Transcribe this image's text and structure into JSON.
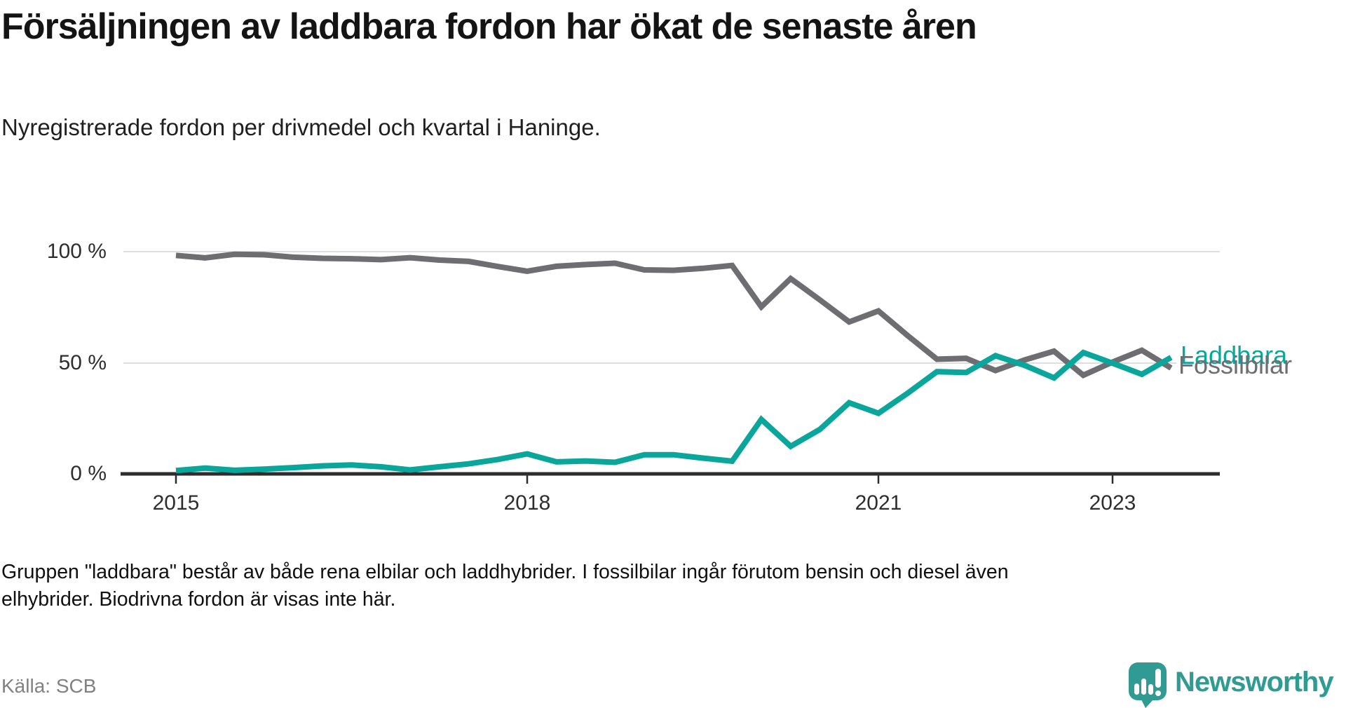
{
  "title": "Försäljningen av laddbara fordon har ökat de senaste åren",
  "subtitle": "Nyregistrerade fordon per drivmedel och kvartal i Haninge.",
  "footnote_lines": [
    "Gruppen \"laddbara\" består av både rena elbilar och laddhybrider. I fossilbilar ingår förutom bensin och diesel även",
    "elhybrider. Biodrivna fordon är visas inte här."
  ],
  "source": "Källa: SCB",
  "brand": {
    "name": "Newsworthy",
    "color": "#2f9b92"
  },
  "colors": {
    "laddbara": "#0aa69b",
    "fossilbilar": "#6d6d72",
    "gridline": "#dedede",
    "axis": "#2d2d2d"
  },
  "chart_data": {
    "type": "line",
    "title": "Nyregistrerade fordon per drivmedel och kvartal i Haninge",
    "unit": "%",
    "ylim": [
      0,
      100
    ],
    "grid": "horizontal",
    "legend_position": "right-end-of-line",
    "y_tick_labels": [
      "100 %",
      "50 %",
      "0 %"
    ],
    "x_tick_labels": [
      "2015",
      "2018",
      "2021",
      "2023"
    ],
    "x": [
      "2015 Q1",
      "2015 Q2",
      "2015 Q3",
      "2015 Q4",
      "2016 Q1",
      "2016 Q2",
      "2016 Q3",
      "2016 Q4",
      "2017 Q1",
      "2017 Q2",
      "2017 Q3",
      "2017 Q4",
      "2018 Q1",
      "2018 Q2",
      "2018 Q3",
      "2018 Q4",
      "2019 Q1",
      "2019 Q2",
      "2019 Q3",
      "2019 Q4",
      "2020 Q1",
      "2020 Q2",
      "2020 Q3",
      "2020 Q4",
      "2021 Q1",
      "2021 Q2",
      "2021 Q3",
      "2021 Q4",
      "2022 Q1",
      "2022 Q2",
      "2022 Q3",
      "2022 Q4",
      "2023 Q1",
      "2023 Q2",
      "2023 Q3"
    ],
    "series": [
      {
        "name": "Fossilbilar",
        "color": "#6d6d72",
        "values": [
          98.3,
          97.2,
          98.8,
          98.6,
          97.5,
          97.0,
          96.8,
          96.4,
          97.3,
          96.2,
          95.6,
          93.3,
          91.2,
          93.4,
          94.2,
          94.8,
          91.8,
          91.6,
          92.5,
          93.8,
          75.2,
          87.9,
          78.3,
          68.4,
          73.3,
          62.2,
          51.6,
          52.0,
          46.5,
          51.3,
          55.2,
          44.4,
          50.3,
          55.6,
          47.6
        ]
      },
      {
        "name": "Laddbara",
        "color": "#0aa69b",
        "values": [
          1.5,
          2.6,
          1.6,
          2.1,
          2.8,
          3.6,
          4.0,
          3.2,
          1.8,
          3.2,
          4.5,
          6.5,
          9.0,
          5.4,
          5.8,
          5.2,
          8.6,
          8.6,
          7.1,
          5.7,
          24.5,
          12.4,
          20.0,
          32.0,
          27.3,
          36.3,
          46.0,
          45.6,
          53.2,
          48.8,
          43.2,
          54.6,
          49.8,
          44.8,
          52.4
        ]
      }
    ]
  }
}
